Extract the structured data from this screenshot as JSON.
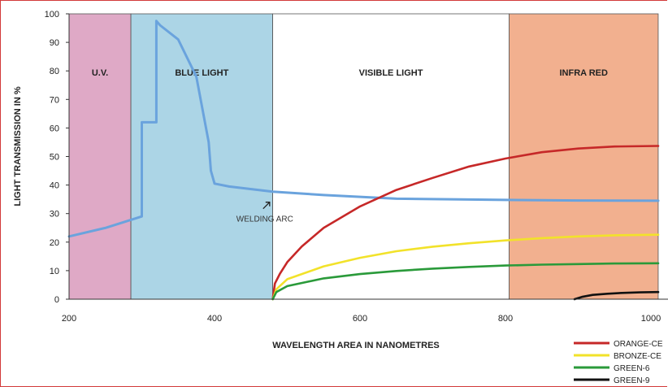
{
  "chart_data": {
    "type": "line",
    "xlabel": "WAVELENGTH AREA IN NANOMETRES",
    "ylabel": "LIGHT TRANSMISSION IN %",
    "xlim": [
      200,
      1010
    ],
    "ylim": [
      0,
      100
    ],
    "x_ticks": [
      200,
      400,
      600,
      800,
      1000
    ],
    "y_ticks": [
      0,
      10,
      20,
      30,
      40,
      50,
      60,
      70,
      80,
      90,
      100
    ],
    "grid": false,
    "legend_position": "bottom-right",
    "regions": [
      {
        "label": "U.V.",
        "x_start": 200,
        "x_end": 285,
        "color": "#dfa9c6"
      },
      {
        "label": "BLUE LIGHT",
        "x_start": 285,
        "x_end": 480,
        "color": "#acd5e6"
      },
      {
        "label": "VISIBLE LIGHT",
        "x_start": 480,
        "x_end": 805,
        "color": "#ffffff"
      },
      {
        "label": "INFRA RED",
        "x_start": 805,
        "x_end": 1010,
        "color": "#f2b08f"
      }
    ],
    "annotations": [
      {
        "text": "WELDING ARC",
        "x": 440,
        "y": 30
      }
    ],
    "series": [
      {
        "name": "",
        "color": "#6aa3dd",
        "x": [
          200,
          250,
          300,
          300,
          320,
          320,
          325,
          350,
          375,
          392,
          395,
          400,
          420,
          480,
          550,
          650,
          800,
          900,
          1010
        ],
        "y": [
          22,
          25,
          29,
          62,
          62,
          97.5,
          96,
          91,
          78,
          55,
          45,
          40.5,
          39.5,
          37.7,
          36.5,
          35.2,
          34.8,
          34.6,
          34.5
        ]
      },
      {
        "name": "ORANGE-CE",
        "color": "#c62828",
        "x": [
          480,
          483,
          490,
          500,
          520,
          550,
          600,
          650,
          700,
          750,
          800,
          850,
          900,
          950,
          1010
        ],
        "y": [
          0,
          5.5,
          9,
          13,
          18.5,
          25,
          32.5,
          38.3,
          42.5,
          46.5,
          49.3,
          51.5,
          52.8,
          53.5,
          53.7
        ]
      },
      {
        "name": "BRONZE-CE",
        "color": "#f2e22a",
        "x": [
          480,
          485,
          500,
          550,
          600,
          650,
          700,
          750,
          800,
          850,
          900,
          950,
          1010
        ],
        "y": [
          0,
          3.5,
          7,
          11.5,
          14.5,
          16.8,
          18.4,
          19.6,
          20.6,
          21.4,
          22,
          22.4,
          22.6
        ]
      },
      {
        "name": "GREEN-6",
        "color": "#2a9a3a",
        "x": [
          480,
          485,
          500,
          550,
          600,
          650,
          700,
          750,
          800,
          850,
          900,
          950,
          1010
        ],
        "y": [
          0,
          2.5,
          4.6,
          7.3,
          8.8,
          9.9,
          10.7,
          11.3,
          11.8,
          12.1,
          12.3,
          12.5,
          12.6
        ]
      },
      {
        "name": "GREEN-9",
        "color": "#111111",
        "x": [
          895,
          905,
          920,
          940,
          960,
          985,
          1010
        ],
        "y": [
          0,
          0.8,
          1.5,
          1.9,
          2.2,
          2.4,
          2.5
        ]
      }
    ]
  }
}
